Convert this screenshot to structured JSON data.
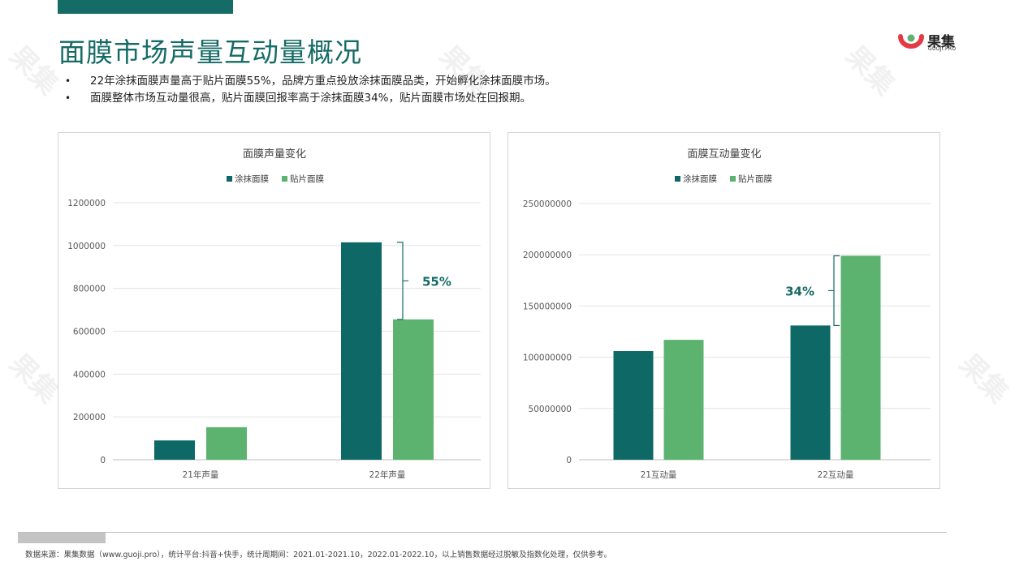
{
  "page": {
    "title": "面膜市场声量互动量概况",
    "bullets": [
      "22年涂抹面膜声量高于贴片面膜55%，品牌方重点投放涂抹面膜品类，开始孵化涂抹面膜市场。",
      "面膜整体市场互动量很高，贴片面膜回报率高于涂抹面膜34%，贴片面膜市场处在回报期。"
    ],
    "footer": "数据来源：果集数据（www.guoji.pro），统计平台:抖音+快手，统计周期间：2021.01-2021.10，2022.01-2022.10，以上销售数据经过脱敏及指数化处理，仅供参考。"
  },
  "logo": {
    "name": "果集",
    "domain": "GUOJI.PRO"
  },
  "colors": {
    "primary": "#156b66",
    "dark_series": "#0e6966",
    "light_series": "#5cb370"
  },
  "chart_data": [
    {
      "type": "bar",
      "title": "面膜声量变化",
      "categories": [
        "21年声量",
        "22年声量"
      ],
      "series": [
        {
          "name": "涂抹面膜",
          "values": [
            90000,
            1015000
          ]
        },
        {
          "name": "贴片面膜",
          "values": [
            152000,
            655000
          ]
        }
      ],
      "ylim": [
        0,
        1200000
      ],
      "yticks": [
        0,
        200000,
        400000,
        600000,
        800000,
        1000000,
        1200000
      ],
      "annotation": "55%",
      "legend": "top-center",
      "grid": true
    },
    {
      "type": "bar",
      "title": "面膜互动量变化",
      "categories": [
        "21互动量",
        "22互动量"
      ],
      "series": [
        {
          "name": "涂抹面膜",
          "values": [
            106000000,
            131000000
          ]
        },
        {
          "name": "贴片面膜",
          "values": [
            117000000,
            199000000
          ]
        }
      ],
      "ylim": [
        0,
        250000000
      ],
      "yticks": [
        0,
        50000000,
        100000000,
        150000000,
        200000000,
        250000000
      ],
      "annotation": "34%",
      "legend": "top-center",
      "grid": true
    }
  ]
}
